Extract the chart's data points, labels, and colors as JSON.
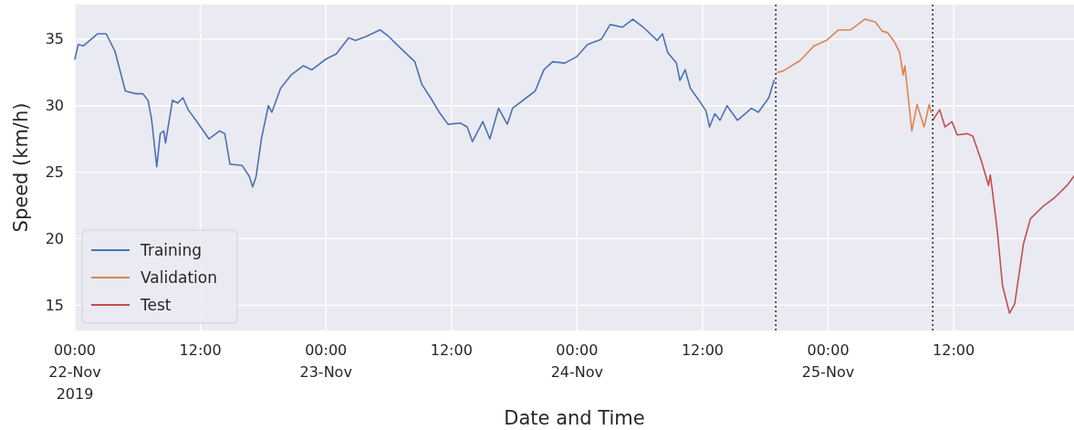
{
  "chart_data": {
    "type": "line",
    "xlabel": "Date and Time",
    "ylabel": "Speed (km/h)",
    "xlim": [
      "2019-11-22T00:00",
      "2019-11-25T23:30"
    ],
    "xticks": [
      {
        "value": "2019-11-22T00:00",
        "label": "00:00\n22-Nov\n2019"
      },
      {
        "value": "2019-11-22T12:00",
        "label": "12:00"
      },
      {
        "value": "2019-11-23T00:00",
        "label": "00:00\n23-Nov"
      },
      {
        "value": "2019-11-23T12:00",
        "label": "12:00"
      },
      {
        "value": "2019-11-24T00:00",
        "label": "00:00\n24-Nov"
      },
      {
        "value": "2019-11-24T12:00",
        "label": "12:00"
      },
      {
        "value": "2019-11-25T00:00",
        "label": "00:00\n25-Nov"
      },
      {
        "value": "2019-11-25T12:00",
        "label": "12:00"
      }
    ],
    "ylim": [
      13.1,
      37.6
    ],
    "yticks": [
      15,
      20,
      25,
      30,
      35
    ],
    "grid": true,
    "legend": "bottom left",
    "line_style": "solid",
    "ref_lines": [
      {
        "axis": "x",
        "value": "2019-11-24T19:00",
        "color": "#333333",
        "line_style": "dotted"
      },
      {
        "axis": "x",
        "value": "2019-11-25T10:00",
        "color": "#333333",
        "line_style": "dotted"
      }
    ],
    "series": [
      {
        "name": "Training",
        "color": "#4c72b0",
        "x": [
          "2019-11-22T00:00",
          "2019-11-22T00:20",
          "2019-11-22T00:50",
          "2019-11-22T02:10",
          "2019-11-22T03:00",
          "2019-11-22T03:50",
          "2019-11-22T04:50",
          "2019-11-22T05:50",
          "2019-11-22T06:30",
          "2019-11-22T07:00",
          "2019-11-22T07:20",
          "2019-11-22T07:50",
          "2019-11-22T08:10",
          "2019-11-22T08:30",
          "2019-11-22T08:40",
          "2019-11-22T09:20",
          "2019-11-22T09:50",
          "2019-11-22T10:20",
          "2019-11-22T10:50",
          "2019-11-22T11:40",
          "2019-11-22T12:50",
          "2019-11-22T13:50",
          "2019-11-22T14:20",
          "2019-11-22T14:50",
          "2019-11-22T16:00",
          "2019-11-22T16:40",
          "2019-11-22T17:00",
          "2019-11-22T17:20",
          "2019-11-22T17:50",
          "2019-11-22T18:30",
          "2019-11-22T18:50",
          "2019-11-22T19:40",
          "2019-11-22T20:40",
          "2019-11-22T21:50",
          "2019-11-22T22:40",
          "2019-11-23T00:00",
          "2019-11-23T01:00",
          "2019-11-23T02:10",
          "2019-11-23T02:50",
          "2019-11-23T03:50",
          "2019-11-23T05:10",
          "2019-11-23T06:00",
          "2019-11-23T07:10",
          "2019-11-23T08:30",
          "2019-11-23T09:10",
          "2019-11-23T10:00",
          "2019-11-23T10:50",
          "2019-11-23T11:40",
          "2019-11-23T12:50",
          "2019-11-23T13:30",
          "2019-11-23T14:00",
          "2019-11-23T15:00",
          "2019-11-23T15:40",
          "2019-11-23T16:30",
          "2019-11-23T17:20",
          "2019-11-23T17:50",
          "2019-11-23T19:10",
          "2019-11-23T20:00",
          "2019-11-23T20:50",
          "2019-11-23T21:40",
          "2019-11-23T22:50",
          "2019-11-24T00:00",
          "2019-11-24T01:00",
          "2019-11-24T02:20",
          "2019-11-24T03:10",
          "2019-11-24T04:20",
          "2019-11-24T05:20",
          "2019-11-24T06:20",
          "2019-11-24T07:40",
          "2019-11-24T08:10",
          "2019-11-24T08:40",
          "2019-11-24T09:30",
          "2019-11-24T09:50",
          "2019-11-24T10:20",
          "2019-11-24T10:50",
          "2019-11-24T11:50",
          "2019-11-24T12:20",
          "2019-11-24T12:40",
          "2019-11-24T13:10",
          "2019-11-24T13:40",
          "2019-11-24T14:20",
          "2019-11-24T15:20",
          "2019-11-24T16:40",
          "2019-11-24T17:20",
          "2019-11-24T18:20",
          "2019-11-24T18:50"
        ],
        "values": [
          33.5,
          34.6,
          34.5,
          35.4,
          35.4,
          34.1,
          31.1,
          30.9,
          30.9,
          30.4,
          29.0,
          25.4,
          27.9,
          28.1,
          27.2,
          30.4,
          30.2,
          30.6,
          29.7,
          28.8,
          27.5,
          28.1,
          27.9,
          25.6,
          25.5,
          24.7,
          23.9,
          24.7,
          27.5,
          30.0,
          29.5,
          31.3,
          32.3,
          33.0,
          32.7,
          33.5,
          33.9,
          35.1,
          34.9,
          35.2,
          35.7,
          35.2,
          34.3,
          33.3,
          31.6,
          30.6,
          29.5,
          28.6,
          28.7,
          28.4,
          27.3,
          28.8,
          27.5,
          29.8,
          28.6,
          29.8,
          30.6,
          31.1,
          32.7,
          33.3,
          33.2,
          33.7,
          34.6,
          35.0,
          36.1,
          35.9,
          36.5,
          35.9,
          34.9,
          35.4,
          34.0,
          33.2,
          31.9,
          32.7,
          31.3,
          30.2,
          29.6,
          28.4,
          29.4,
          28.9,
          30.0,
          28.9,
          29.8,
          29.5,
          30.6,
          31.9
        ]
      },
      {
        "name": "Validation",
        "color": "#dd8452",
        "x": [
          "2019-11-24T19:10",
          "2019-11-24T19:40",
          "2019-11-24T21:20",
          "2019-11-24T22:40",
          "2019-11-24T23:50",
          "2019-11-25T01:00",
          "2019-11-25T02:10",
          "2019-11-25T03:30",
          "2019-11-25T04:30",
          "2019-11-25T05:10",
          "2019-11-25T05:40",
          "2019-11-25T06:20",
          "2019-11-25T06:50",
          "2019-11-25T07:10",
          "2019-11-25T07:20",
          "2019-11-25T08:00",
          "2019-11-25T08:30",
          "2019-11-25T09:10",
          "2019-11-25T09:40",
          "2019-11-25T09:50"
        ],
        "values": [
          32.5,
          32.6,
          33.4,
          34.5,
          34.9,
          35.7,
          35.7,
          36.5,
          36.3,
          35.6,
          35.5,
          34.8,
          34.0,
          32.3,
          33.0,
          28.1,
          30.1,
          28.4,
          30.1,
          29.5
        ]
      },
      {
        "name": "Test",
        "color": "#c44e52",
        "x": [
          "2019-11-25T10:00",
          "2019-11-25T10:40",
          "2019-11-25T11:10",
          "2019-11-25T11:50",
          "2019-11-25T12:20",
          "2019-11-25T13:20",
          "2019-11-25T13:50",
          "2019-11-25T14:40",
          "2019-11-25T15:20",
          "2019-11-25T15:30",
          "2019-11-25T15:40",
          "2019-11-25T16:10",
          "2019-11-25T16:40",
          "2019-11-25T17:20",
          "2019-11-25T17:50",
          "2019-11-25T18:40",
          "2019-11-25T19:20",
          "2019-11-25T20:30",
          "2019-11-25T21:40",
          "2019-11-25T22:50",
          "2019-11-25T23:30"
        ],
        "values": [
          28.9,
          29.7,
          28.4,
          28.8,
          27.8,
          27.9,
          27.7,
          25.8,
          24.0,
          24.8,
          23.8,
          20.6,
          16.5,
          14.4,
          15.1,
          19.6,
          21.5,
          22.4,
          23.1,
          24.0,
          24.7
        ]
      }
    ]
  }
}
